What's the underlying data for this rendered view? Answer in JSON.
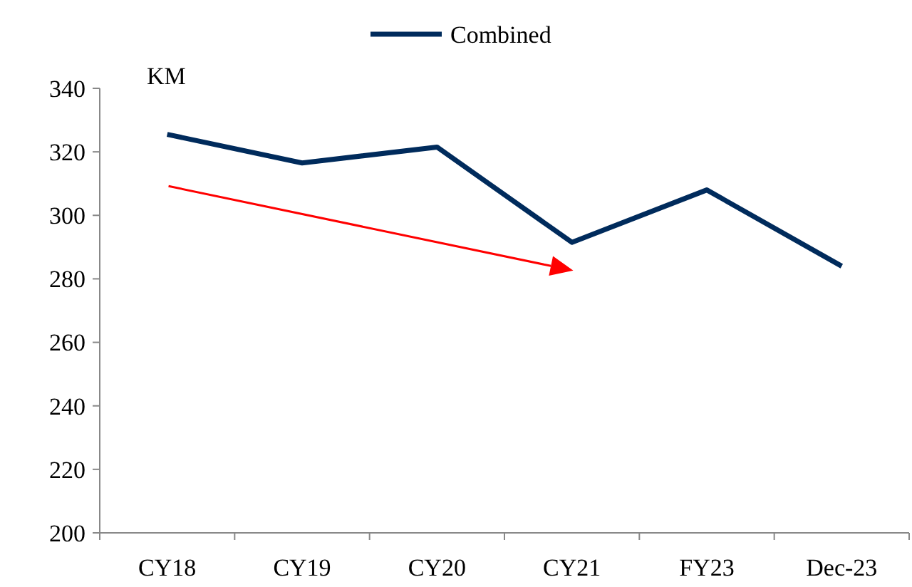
{
  "chart_data": {
    "type": "line",
    "ylabel": "KM",
    "categories": [
      "CY18",
      "CY19",
      "CY20",
      "CY21",
      "FY23",
      "Dec-23"
    ],
    "series": [
      {
        "name": "Combined",
        "color": "#002b5c",
        "values": [
          325.5,
          316.5,
          321.5,
          291.5,
          308,
          284
        ]
      }
    ],
    "ylim": [
      200,
      340
    ],
    "yticks": [
      200,
      220,
      240,
      260,
      280,
      300,
      320,
      340
    ],
    "grid": false,
    "legend": "top",
    "marker": "none",
    "line_style": "solid"
  }
}
